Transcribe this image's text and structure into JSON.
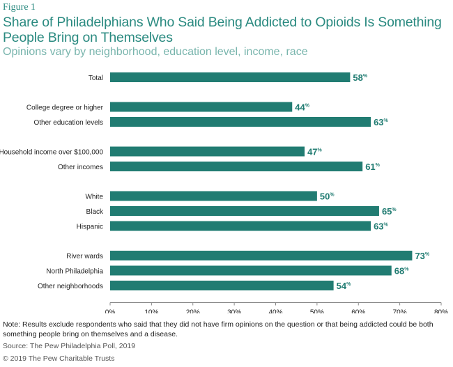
{
  "figure_label": "Figure 1",
  "colors": {
    "bar": "#217c72",
    "title": "#2a8a80",
    "subtitle": "#79b5ad"
  },
  "chart_data": {
    "type": "bar",
    "orientation": "horizontal",
    "title": "Share of Philadelphians Who Said Being Addicted to Opioids Is Something People Bring on Themselves",
    "subtitle": "Opinions vary by neighborhood, education level, income, race",
    "xlim": [
      0,
      80
    ],
    "xticks": [
      0,
      10,
      20,
      30,
      40,
      50,
      60,
      70,
      80
    ],
    "tick_suffix": "%",
    "value_suffix": "%",
    "grid": false,
    "groups": [
      {
        "categories": [
          "Total"
        ],
        "values": [
          58
        ]
      },
      {
        "categories": [
          "College degree or higher",
          "Other education levels"
        ],
        "values": [
          44,
          63
        ]
      },
      {
        "categories": [
          "Household income over $100,000",
          "Other incomes"
        ],
        "values": [
          47,
          61
        ]
      },
      {
        "categories": [
          "White",
          "Black",
          "Hispanic"
        ],
        "values": [
          50,
          65,
          63
        ]
      },
      {
        "categories": [
          "River wards",
          "North Philadelphia",
          "Other neighborhoods"
        ],
        "values": [
          73,
          68,
          54
        ]
      }
    ]
  },
  "note": "Note: Results exclude respondents who said that they did not have firm opinions on the question or that being addicted could be both something people bring on themselves and a disease.",
  "source": "Source: The Pew Philadelphia Poll, 2019",
  "copyright": "© 2019 The Pew Charitable Trusts"
}
